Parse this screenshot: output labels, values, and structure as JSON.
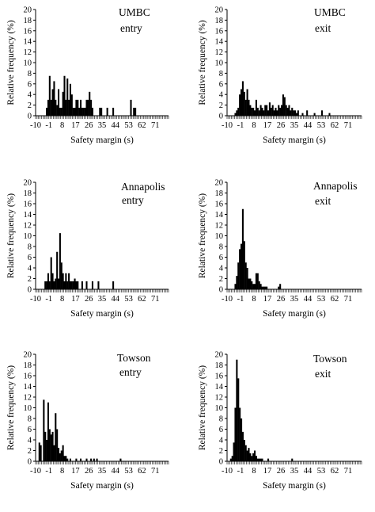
{
  "chart_data": [
    {
      "type": "bar",
      "site": "UMBC",
      "condition": "entry",
      "xlabel": "Safety margin (s)",
      "ylabel": "Relative frequency (%)",
      "xlim": [
        -10,
        80
      ],
      "ylim": [
        0,
        20
      ],
      "xticks": [
        "-10",
        "-1",
        "8",
        "17",
        "26",
        "35",
        "44",
        "53",
        "62",
        "71"
      ],
      "yticks": [
        "0",
        "2",
        "4",
        "6",
        "8",
        "10",
        "12",
        "14",
        "16",
        "18",
        "20"
      ],
      "bin_width": 1,
      "x": [
        -3,
        -2,
        -1,
        0,
        1,
        2,
        3,
        4,
        5,
        6,
        7,
        8,
        9,
        10,
        11,
        12,
        13,
        14,
        15,
        16,
        17,
        18,
        19,
        20,
        21,
        22,
        23,
        24,
        25,
        26,
        27,
        28,
        33,
        34,
        38,
        42,
        54,
        56,
        57
      ],
      "values": [
        1.5,
        3,
        7.5,
        3,
        5,
        6.5,
        3,
        2,
        5,
        1.5,
        1.5,
        4.5,
        7.5,
        3,
        7,
        3,
        6,
        4,
        1.5,
        1.5,
        3,
        3,
        1.5,
        3,
        1.5,
        1.5,
        1.5,
        3,
        3,
        4.5,
        3,
        1.5,
        1.5,
        1.5,
        1.5,
        1.5,
        3,
        1.5,
        1.5
      ]
    },
    {
      "type": "bar",
      "site": "UMBC",
      "condition": "exit",
      "xlabel": "Safety margin (s)",
      "ylabel": "Relative frequency (%)",
      "xlim": [
        -10,
        80
      ],
      "ylim": [
        0,
        20
      ],
      "xticks": [
        "-10",
        "-1",
        "8",
        "17",
        "26",
        "35",
        "44",
        "53",
        "62",
        "71"
      ],
      "yticks": [
        "0",
        "2",
        "4",
        "6",
        "8",
        "10",
        "12",
        "14",
        "16",
        "18",
        "20"
      ],
      "bin_width": 1,
      "x": [
        -5,
        -4,
        -3,
        -2,
        -1,
        0,
        1,
        2,
        3,
        4,
        5,
        6,
        7,
        8,
        9,
        10,
        11,
        12,
        13,
        14,
        15,
        16,
        17,
        18,
        19,
        20,
        21,
        22,
        23,
        24,
        25,
        26,
        27,
        28,
        29,
        30,
        31,
        32,
        33,
        34,
        35,
        36,
        37,
        40,
        43,
        48,
        53,
        58
      ],
      "values": [
        0.5,
        1,
        1.5,
        4,
        5,
        6.5,
        4.5,
        3,
        5,
        3,
        2,
        1.5,
        1.5,
        1,
        3,
        1.5,
        1,
        2,
        1.5,
        1,
        2,
        2,
        1,
        2.5,
        1.5,
        2,
        1,
        1.5,
        1,
        2,
        1.5,
        2,
        4,
        3.5,
        2,
        1.5,
        2,
        1,
        1.5,
        1,
        1,
        0.5,
        1,
        0.5,
        1,
        0.5,
        1,
        0.5
      ]
    },
    {
      "type": "bar",
      "site": "Annapolis",
      "condition": "entry",
      "xlabel": "Safety margin (s)",
      "ylabel": "Relative frequency (%)",
      "xlim": [
        -10,
        80
      ],
      "ylim": [
        0,
        20
      ],
      "xticks": [
        "-10",
        "-1",
        "8",
        "17",
        "26",
        "35",
        "44",
        "53",
        "62",
        "71"
      ],
      "yticks": [
        "0",
        "2",
        "4",
        "6",
        "8",
        "10",
        "12",
        "14",
        "16",
        "18",
        "20"
      ],
      "bin_width": 1,
      "x": [
        -4,
        -3,
        -2,
        -1,
        0,
        1,
        2,
        3,
        4,
        5,
        6,
        7,
        8,
        9,
        10,
        11,
        12,
        13,
        14,
        15,
        16,
        17,
        18,
        21,
        24,
        28,
        32,
        42
      ],
      "values": [
        1.5,
        1.5,
        3,
        1.5,
        6,
        3,
        1.5,
        2,
        7,
        2,
        10.5,
        5,
        3,
        1.5,
        3,
        1.5,
        3,
        1.5,
        1.5,
        1.5,
        2,
        1.5,
        1.5,
        1.5,
        1.5,
        1.5,
        1.5,
        1.5
      ]
    },
    {
      "type": "bar",
      "site": "Annapolis",
      "condition": "exit",
      "xlabel": "Safety margin (s)",
      "ylabel": "Relative frequency (%)",
      "xlim": [
        -10,
        80
      ],
      "ylim": [
        0,
        20
      ],
      "xticks": [
        "-10",
        "-1",
        "8",
        "17",
        "26",
        "35",
        "44",
        "53",
        "62",
        "71"
      ],
      "yticks": [
        "0",
        "2",
        "4",
        "6",
        "8",
        "10",
        "12",
        "14",
        "16",
        "18",
        "20"
      ],
      "bin_width": 1,
      "x": [
        -5,
        -4,
        -3,
        -2,
        -1,
        0,
        1,
        2,
        3,
        4,
        5,
        6,
        7,
        8,
        9,
        10,
        11,
        12,
        13,
        14,
        15,
        16,
        24,
        25
      ],
      "values": [
        1,
        2.5,
        5,
        7.5,
        8.5,
        15,
        9,
        5,
        4,
        2,
        2,
        1.5,
        1,
        1,
        3,
        3,
        1.5,
        1,
        0.5,
        0.5,
        0.5,
        0.5,
        0.5,
        1
      ]
    },
    {
      "type": "bar",
      "site": "Towson",
      "condition": "entry",
      "xlabel": "Safety margin (s)",
      "ylabel": "Relative frequency (%)",
      "xlim": [
        -10,
        80
      ],
      "ylim": [
        0,
        20
      ],
      "xticks": [
        "-10",
        "-1",
        "8",
        "17",
        "26",
        "35",
        "44",
        "53",
        "62",
        "71"
      ],
      "yticks": [
        "0",
        "2",
        "4",
        "6",
        "8",
        "10",
        "12",
        "14",
        "16",
        "18",
        "20"
      ],
      "bin_width": 1,
      "x": [
        -8,
        -7,
        -5,
        -4,
        -3,
        -2,
        -1,
        0,
        1,
        2,
        3,
        4,
        5,
        6,
        7,
        8,
        9,
        10,
        11,
        13,
        17,
        20,
        24,
        27,
        29,
        31,
        47
      ],
      "values": [
        3.5,
        3,
        11.5,
        5.5,
        4,
        11,
        6,
        5,
        5.5,
        3,
        9,
        6,
        2.5,
        1.5,
        2,
        3,
        1,
        1,
        0.5,
        0.5,
        0.5,
        0.5,
        0.5,
        0.5,
        0.5,
        0.5,
        0.5
      ]
    },
    {
      "type": "bar",
      "site": "Towson",
      "condition": "exit",
      "xlabel": "Safety margin (s)",
      "ylabel": "Relative frequency (%)",
      "xlim": [
        -10,
        80
      ],
      "ylim": [
        0,
        20
      ],
      "xticks": [
        "-10",
        "-1",
        "8",
        "17",
        "26",
        "35",
        "44",
        "53",
        "62",
        "71"
      ],
      "yticks": [
        "0",
        "2",
        "4",
        "6",
        "8",
        "10",
        "12",
        "14",
        "16",
        "18",
        "20"
      ],
      "bin_width": 1,
      "x": [
        -8,
        -7,
        -6,
        -5,
        -4,
        -3,
        -2,
        -1,
        0,
        1,
        2,
        3,
        4,
        5,
        6,
        7,
        8,
        9,
        10,
        11,
        12,
        13,
        17,
        33
      ],
      "values": [
        0.5,
        1,
        3.5,
        10,
        19,
        15.5,
        10,
        8,
        5.5,
        4,
        3,
        2,
        2.5,
        1.5,
        1,
        1.5,
        2,
        1,
        0.5,
        0.5,
        0.5,
        0.5,
        0.5,
        0.5
      ]
    }
  ]
}
